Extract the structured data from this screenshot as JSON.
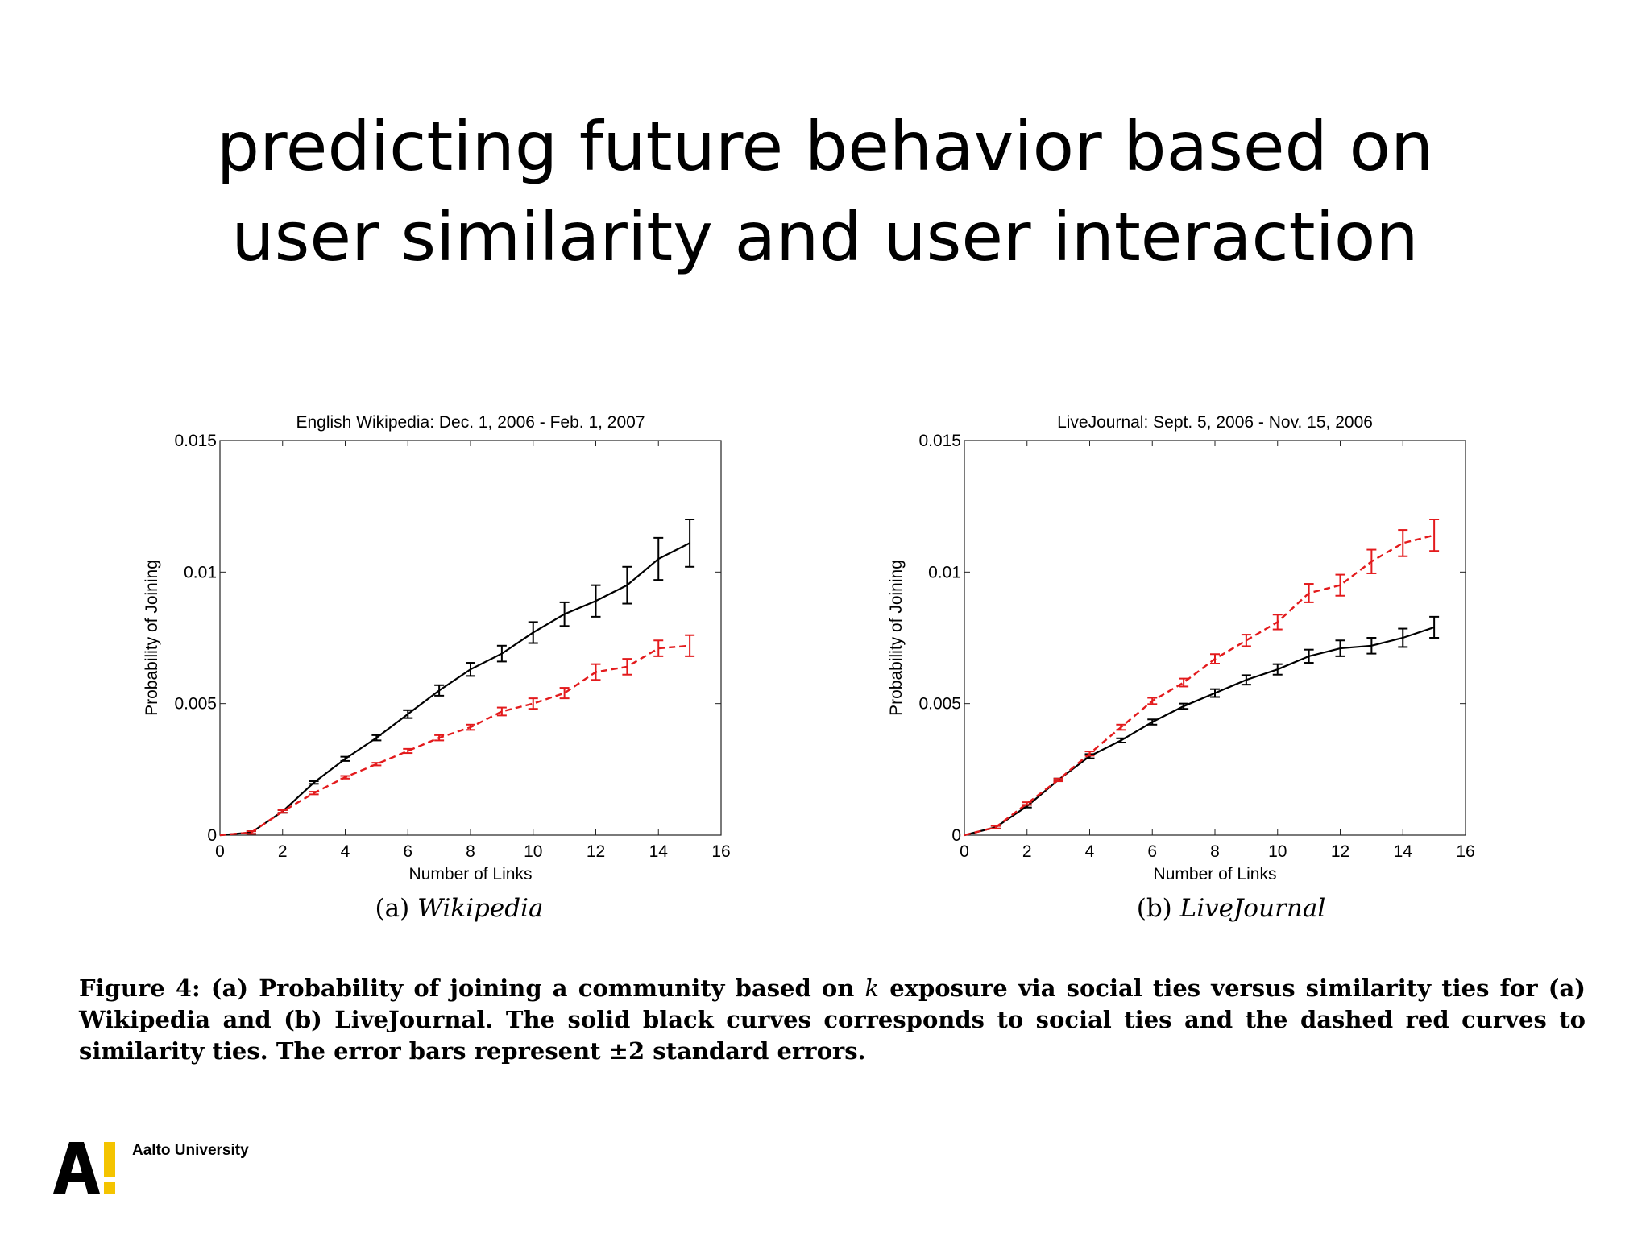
{
  "slide": {
    "title_line1": "predicting future behavior based on",
    "title_line2": "user similarity and user interaction"
  },
  "figure": {
    "subcaption_a_label": "(a)",
    "subcaption_a_name": "Wikipedia",
    "subcaption_b_label": "(b)",
    "subcaption_b_name": "LiveJournal",
    "caption_prefix": "Figure 4:  (a) Probability of joining a community based on",
    "caption_k": "k",
    "caption_rest": "exposure via social ties versus similarity ties for (a) Wikipedia and (b) LiveJournal. The solid black curves corresponds to social ties and the dashed red curves to similarity ties. The error bars represent ±2 standard errors."
  },
  "footer": {
    "logo_text": "Aalto University",
    "logo_colors": {
      "letter": "#000000",
      "mark": "#f4c400"
    }
  },
  "colors": {
    "social": "#000000",
    "similarity": "#e31a1c"
  },
  "chart_data": [
    {
      "type": "line",
      "title": "English Wikipedia:  Dec. 1, 2006 - Feb. 1, 2007",
      "xlabel": "Number of Links",
      "ylabel": "Probability of Joining",
      "xlim": [
        0,
        16
      ],
      "ylim": [
        0,
        0.015
      ],
      "xticks": [
        0,
        2,
        4,
        6,
        8,
        10,
        12,
        14,
        16
      ],
      "yticks": [
        0,
        0.005,
        0.01,
        0.015
      ],
      "ytick_labels": [
        "0",
        "0.005",
        "0.01",
        "0.015"
      ],
      "grid": false,
      "x": [
        0,
        1,
        2,
        3,
        4,
        5,
        6,
        7,
        8,
        9,
        10,
        11,
        12,
        13,
        14,
        15
      ],
      "series": [
        {
          "style": "solid",
          "color": "#000000",
          "values": [
            0,
            0.0001,
            0.0009,
            0.002,
            0.0029,
            0.0037,
            0.0046,
            0.0055,
            0.0063,
            0.0069,
            0.0077,
            0.0084,
            0.0089,
            0.0095,
            0.0105,
            0.0111
          ],
          "error": [
            0,
            5e-05,
            5e-05,
            5e-05,
            8e-05,
            0.0001,
            0.00015,
            0.0002,
            0.00025,
            0.0003,
            0.0004,
            0.00045,
            0.0006,
            0.0007,
            0.0008,
            0.0009
          ]
        },
        {
          "style": "dashed",
          "color": "#e31a1c",
          "values": [
            0,
            0.0001,
            0.0009,
            0.0016,
            0.0022,
            0.0027,
            0.0032,
            0.0037,
            0.0041,
            0.0047,
            0.005,
            0.0054,
            0.0062,
            0.0064,
            0.0071,
            0.0072
          ],
          "error": [
            0,
            5e-05,
            5e-05,
            5e-05,
            5e-05,
            5e-05,
            8e-05,
            0.0001,
            0.0001,
            0.00015,
            0.0002,
            0.0002,
            0.0003,
            0.0003,
            0.0003,
            0.0004
          ]
        }
      ]
    },
    {
      "type": "line",
      "title": "LiveJournal:  Sept. 5, 2006 - Nov. 15, 2006",
      "xlabel": "Number of Links",
      "ylabel": "Probability of Joining",
      "xlim": [
        0,
        16
      ],
      "ylim": [
        0,
        0.015
      ],
      "xticks": [
        0,
        2,
        4,
        6,
        8,
        10,
        12,
        14,
        16
      ],
      "yticks": [
        0,
        0.005,
        0.01,
        0.015
      ],
      "ytick_labels": [
        "0",
        "0.005",
        "0.01",
        "0.015"
      ],
      "grid": false,
      "x": [
        0,
        1,
        2,
        3,
        4,
        5,
        6,
        7,
        8,
        9,
        10,
        11,
        12,
        13,
        14,
        15
      ],
      "series": [
        {
          "style": "solid",
          "color": "#000000",
          "values": [
            0,
            0.0003,
            0.0011,
            0.0021,
            0.003,
            0.0036,
            0.0043,
            0.0049,
            0.0054,
            0.0059,
            0.0063,
            0.0068,
            0.0071,
            0.0072,
            0.0075,
            0.0079
          ],
          "error": [
            0,
            5e-05,
            5e-05,
            5e-05,
            8e-05,
            8e-05,
            0.0001,
            0.0001,
            0.00015,
            0.00018,
            0.0002,
            0.00025,
            0.0003,
            0.0003,
            0.00035,
            0.0004
          ]
        },
        {
          "style": "dashed",
          "color": "#e31a1c",
          "values": [
            0,
            0.0003,
            0.0012,
            0.0021,
            0.0031,
            0.0041,
            0.0051,
            0.0058,
            0.0067,
            0.0074,
            0.0081,
            0.0092,
            0.0095,
            0.0104,
            0.0111,
            0.0114
          ],
          "error": [
            0,
            5e-05,
            5e-05,
            5e-05,
            8e-05,
            0.0001,
            0.00012,
            0.00015,
            0.00018,
            0.00022,
            0.00028,
            0.00035,
            0.0004,
            0.00045,
            0.0005,
            0.0006
          ]
        }
      ]
    }
  ]
}
